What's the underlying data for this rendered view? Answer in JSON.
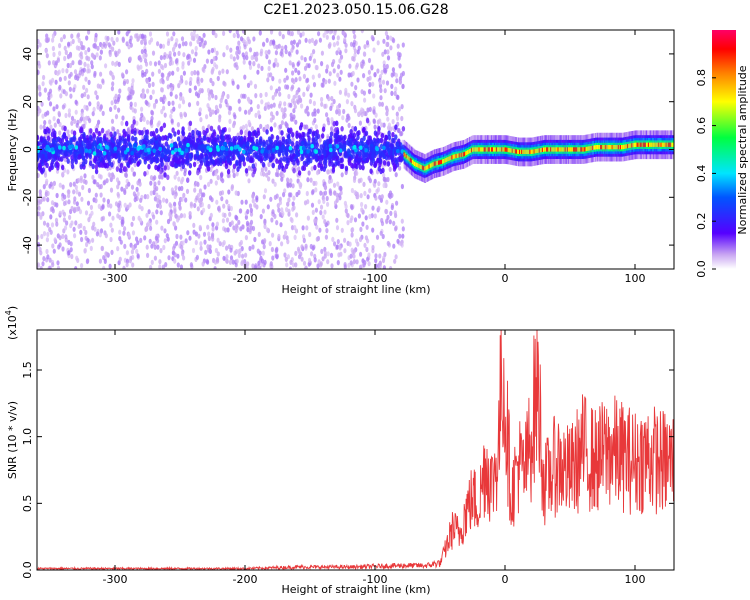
{
  "title": "C2E1.2023.050.15.06.G28",
  "chart_data": [
    {
      "type": "heatmap",
      "xlabel": "Height of straight line (km)",
      "ylabel": "Frequency (Hz)",
      "xlim": [
        -360,
        130
      ],
      "ylim": [
        -50,
        50
      ],
      "xticks": [
        -300,
        -200,
        -100,
        0,
        100
      ],
      "yticks": [
        -40,
        -20,
        0,
        20,
        40
      ],
      "ridge": {
        "x": [
          -78,
          -70,
          -62,
          -55,
          -48,
          -40,
          -32,
          -25,
          -18,
          -10,
          0,
          10,
          20,
          30,
          40,
          50,
          60,
          70,
          80,
          90,
          100,
          110,
          120,
          130
        ],
        "freq": [
          -2,
          -6,
          -8,
          -6,
          -5,
          -3,
          -2,
          0,
          0,
          0,
          0,
          -1,
          -1,
          0,
          0,
          0,
          0,
          1,
          1,
          1,
          2,
          2,
          2,
          2
        ]
      },
      "noise_region_x": [
        -360,
        -78
      ],
      "noise_center_freq": 0,
      "colorbar": {
        "label": "Normalized spectral amplitude",
        "range": [
          0.0,
          1.0
        ],
        "ticks": [
          "0.0",
          "0.2",
          "0.4",
          "0.6",
          "0.8"
        ]
      }
    },
    {
      "type": "line",
      "xlabel": "Height of straight line (km)",
      "ylabel": "SNR (10 * v/v)",
      "yscale_label": "(x10",
      "yscale_exp": "4",
      "xlim": [
        -360,
        130
      ],
      "ylim": [
        0,
        1.8
      ],
      "xticks": [
        -300,
        -200,
        -100,
        0,
        100
      ],
      "yticks": [
        "0.0",
        "0.5",
        "1.0",
        "1.5"
      ],
      "ytick_values": [
        0,
        0.5,
        1.0,
        1.5
      ],
      "color": "#e8383a",
      "series": [
        {
          "x": [
            -360,
            -320,
            -280,
            -240,
            -200,
            -160,
            -120,
            -80,
            -60,
            -50,
            -45,
            -40,
            -35,
            -30,
            -25,
            -20,
            -15,
            -10,
            -5,
            -2,
            0,
            5,
            10,
            15,
            20,
            25,
            30,
            40,
            50,
            60,
            70,
            80,
            90,
            100,
            110,
            120,
            130
          ],
          "values": [
            0.01,
            0.01,
            0.01,
            0.01,
            0.01,
            0.02,
            0.02,
            0.03,
            0.03,
            0.05,
            0.2,
            0.35,
            0.3,
            0.5,
            0.6,
            0.55,
            0.9,
            0.7,
            1.0,
            1.8,
            1.4,
            0.6,
            0.9,
            0.8,
            1.1,
            1.6,
            0.7,
            0.9,
            0.8,
            1.0,
            0.9,
            1.0,
            0.95,
            0.9,
            0.95,
            0.9,
            0.9
          ]
        }
      ]
    }
  ]
}
